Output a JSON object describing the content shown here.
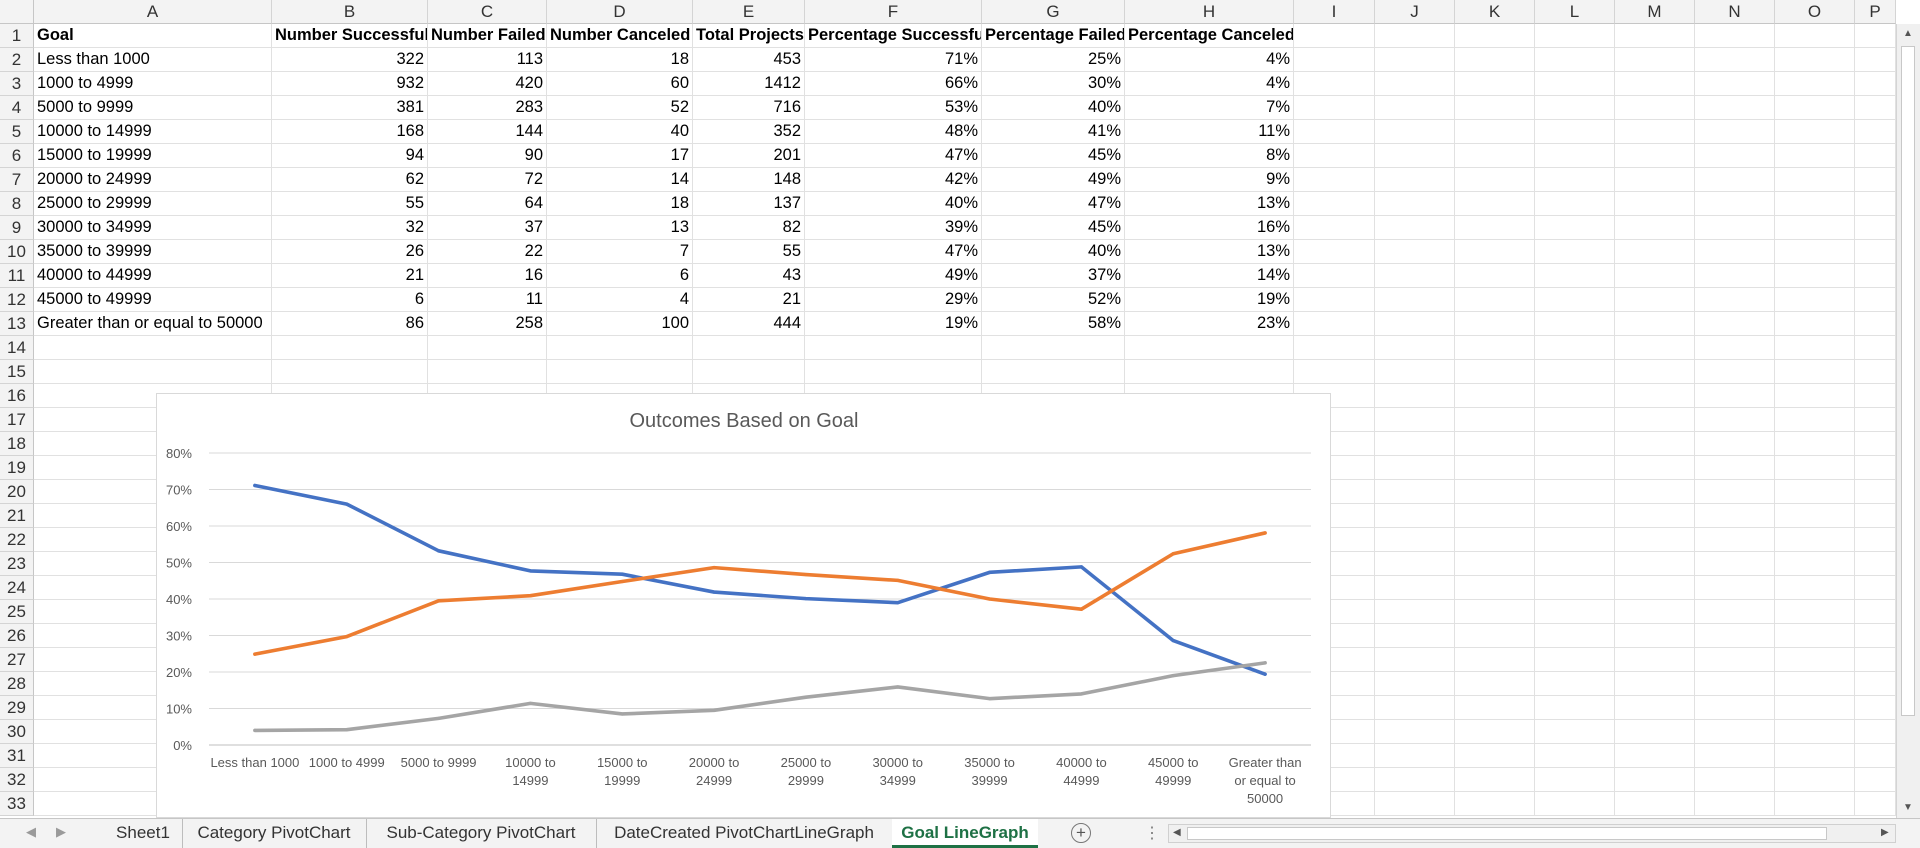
{
  "spreadsheet": {
    "column_letters": [
      "A",
      "B",
      "C",
      "D",
      "E",
      "F",
      "G",
      "H",
      "I",
      "J",
      "K",
      "L",
      "M",
      "N",
      "O",
      "P"
    ],
    "row_numbers": [
      "1",
      "2",
      "3",
      "4",
      "5",
      "6",
      "7",
      "8",
      "9",
      "10",
      "11",
      "12",
      "13",
      "14",
      "15",
      "16",
      "17",
      "18",
      "19",
      "20",
      "21",
      "22",
      "23",
      "24",
      "25",
      "26",
      "27",
      "28",
      "29",
      "30",
      "31",
      "32",
      "33"
    ],
    "headers": [
      "Goal",
      "Number Successful",
      "Number Failed",
      "Number Canceled",
      "Total Projects",
      "Percentage Successful",
      "Percentage Failed",
      "Percentage Canceled"
    ],
    "rows": [
      [
        "Less than 1000",
        "322",
        "113",
        "18",
        "453",
        "71%",
        "25%",
        "4%"
      ],
      [
        "1000 to 4999",
        "932",
        "420",
        "60",
        "1412",
        "66%",
        "30%",
        "4%"
      ],
      [
        "5000 to 9999",
        "381",
        "283",
        "52",
        "716",
        "53%",
        "40%",
        "7%"
      ],
      [
        "10000 to 14999",
        "168",
        "144",
        "40",
        "352",
        "48%",
        "41%",
        "11%"
      ],
      [
        "15000 to 19999",
        "94",
        "90",
        "17",
        "201",
        "47%",
        "45%",
        "8%"
      ],
      [
        "20000 to 24999",
        "62",
        "72",
        "14",
        "148",
        "42%",
        "49%",
        "9%"
      ],
      [
        "25000 to 29999",
        "55",
        "64",
        "18",
        "137",
        "40%",
        "47%",
        "13%"
      ],
      [
        "30000 to 34999",
        "32",
        "37",
        "13",
        "82",
        "39%",
        "45%",
        "16%"
      ],
      [
        "35000 to 39999",
        "26",
        "22",
        "7",
        "55",
        "47%",
        "40%",
        "13%"
      ],
      [
        "40000 to 44999",
        "21",
        "16",
        "6",
        "43",
        "49%",
        "37%",
        "14%"
      ],
      [
        "45000 to 49999",
        "6",
        "11",
        "4",
        "21",
        "29%",
        "52%",
        "19%"
      ],
      [
        "Greater than or equal to 50000",
        "86",
        "258",
        "100",
        "444",
        "19%",
        "58%",
        "23%"
      ]
    ]
  },
  "chart_data": {
    "type": "line",
    "title": "Outcomes Based on Goal",
    "categories": [
      "Less than 1000",
      "1000 to 4999",
      "5000 to 9999",
      "10000 to 14999",
      "15000 to 19999",
      "20000 to 24999",
      "25000 to 29999",
      "30000 to 34999",
      "35000 to 39999",
      "40000 to 44999",
      "45000 to 49999",
      "Greater than or equal to 50000"
    ],
    "category_label_lines": [
      [
        "Less than 1000"
      ],
      [
        "1000 to 4999"
      ],
      [
        "5000 to 9999"
      ],
      [
        "10000 to",
        "14999"
      ],
      [
        "15000 to",
        "19999"
      ],
      [
        "20000 to",
        "24999"
      ],
      [
        "25000 to",
        "29999"
      ],
      [
        "30000 to",
        "34999"
      ],
      [
        "35000 to",
        "39999"
      ],
      [
        "40000 to",
        "44999"
      ],
      [
        "45000 to",
        "49999"
      ],
      [
        "Greater than",
        "or equal to",
        "50000"
      ]
    ],
    "y_ticks": [
      "0%",
      "10%",
      "20%",
      "30%",
      "40%",
      "50%",
      "60%",
      "70%",
      "80%"
    ],
    "ylim": [
      0,
      80
    ],
    "grid": true,
    "series": [
      {
        "values": [
          71.1,
          66.0,
          53.2,
          47.7,
          46.8,
          41.9,
          40.1,
          39.0,
          47.3,
          48.8,
          28.6,
          19.4
        ],
        "color": "#4472c4"
      },
      {
        "values": [
          24.9,
          29.7,
          39.5,
          40.9,
          44.8,
          48.6,
          46.7,
          45.1,
          40.0,
          37.2,
          52.4,
          58.1
        ],
        "color": "#ed7d31"
      },
      {
        "values": [
          4.0,
          4.2,
          7.3,
          11.4,
          8.5,
          9.5,
          13.1,
          15.9,
          12.7,
          14.0,
          19.0,
          22.5
        ],
        "color": "#a5a5a5"
      }
    ]
  },
  "sheet_tabs": {
    "tabs": [
      "Sheet1",
      "Category PivotChart",
      "Sub-Category PivotChart",
      "DateCreated PivotChartLineGraph",
      "Goal LineGraph"
    ],
    "active": "Goal LineGraph",
    "add_symbol": "+",
    "more_symbol": "⋮"
  },
  "icons": {
    "scroll_up": "chevron-up-icon",
    "scroll_down": "chevron-down-icon",
    "scroll_left": "chevron-left-icon",
    "scroll_right": "chevron-right-icon",
    "tab_prev": "tab-prev-icon",
    "tab_next": "tab-next-icon"
  }
}
